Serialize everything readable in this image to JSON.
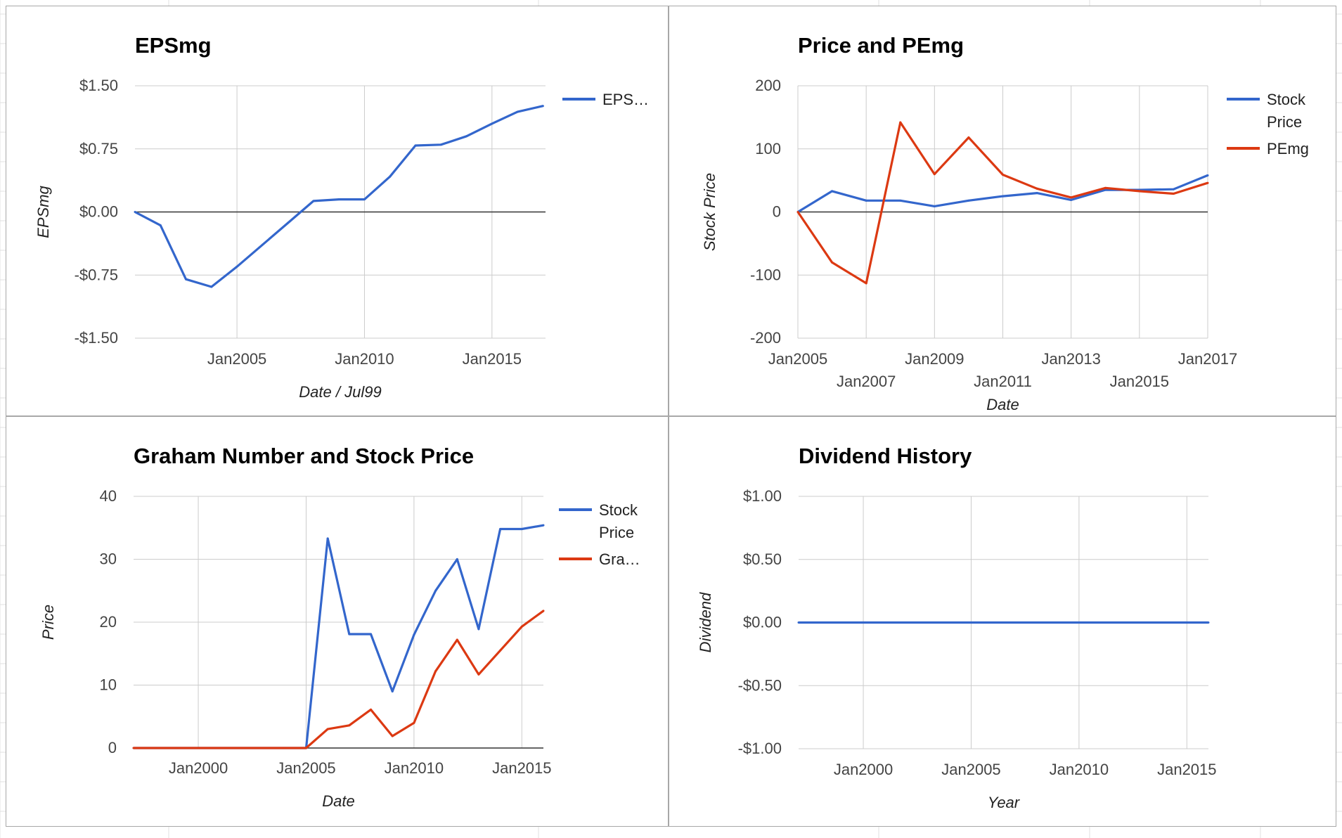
{
  "colors": {
    "blue": "#3366cc",
    "red": "#dc3912",
    "grid": "#cccccc",
    "baseline": "#333333",
    "sheet_grid": "#e0e0e0"
  },
  "chart_data": [
    {
      "id": "epsmg",
      "type": "line",
      "title": "EPSmg",
      "xlabel": "Date / Jul99",
      "ylabel": "EPSmg",
      "xlim": [
        2001.0,
        2017.1
      ],
      "ylim": [
        -1.5,
        1.5
      ],
      "y_ticks": [
        {
          "value": 1.5,
          "label": "$1.50"
        },
        {
          "value": 0.75,
          "label": "$0.75"
        },
        {
          "value": 0,
          "label": "$0.00"
        },
        {
          "value": -0.75,
          "label": "-$0.75"
        },
        {
          "value": -1.5,
          "label": "-$1.50"
        }
      ],
      "x_ticks": [
        {
          "value": 2005,
          "label": "Jan2005"
        },
        {
          "value": 2010,
          "label": "Jan2010"
        },
        {
          "value": 2015,
          "label": "Jan2015"
        }
      ],
      "grid": true,
      "legend": "right",
      "series": [
        {
          "name": "EPS…",
          "color": "#3366cc",
          "x": [
            2001.0,
            2002.0,
            2003.0,
            2004.0,
            2005.0,
            2006.0,
            2007.0,
            2008.0,
            2009.0,
            2010.0,
            2011.0,
            2012.0,
            2013.0,
            2014.0,
            2015.0,
            2016.0,
            2017.0
          ],
          "y": [
            0.0,
            -0.16,
            -0.8,
            -0.89,
            -0.65,
            -0.39,
            -0.13,
            0.13,
            0.15,
            0.15,
            0.42,
            0.79,
            0.8,
            0.9,
            1.05,
            1.19,
            1.26
          ]
        }
      ]
    },
    {
      "id": "price-pemg",
      "type": "line",
      "title": "Price and PEmg",
      "xlabel": "Date",
      "ylabel": "Stock Price",
      "xlim": [
        2005.0,
        2017.0
      ],
      "ylim": [
        -200,
        200
      ],
      "y_ticks": [
        {
          "value": 200,
          "label": "200"
        },
        {
          "value": 100,
          "label": "100"
        },
        {
          "value": 0,
          "label": "0"
        },
        {
          "value": -100,
          "label": "-100"
        },
        {
          "value": -200,
          "label": "-200"
        }
      ],
      "x_ticks": [
        {
          "value": 2005,
          "label": "Jan2005",
          "row": 0
        },
        {
          "value": 2007,
          "label": "Jan2007",
          "row": 1
        },
        {
          "value": 2009,
          "label": "Jan2009",
          "row": 0
        },
        {
          "value": 2011,
          "label": "Jan2011",
          "row": 1
        },
        {
          "value": 2013,
          "label": "Jan2013",
          "row": 0
        },
        {
          "value": 2015,
          "label": "Jan2015",
          "row": 1
        },
        {
          "value": 2017,
          "label": "Jan2017",
          "row": 0
        }
      ],
      "grid": true,
      "legend": "right",
      "series": [
        {
          "name": "Stock Price",
          "color": "#3366cc",
          "x": [
            2005.0,
            2006.0,
            2007.0,
            2008.0,
            2009.0,
            2010.0,
            2011.0,
            2012.0,
            2013.0,
            2014.0,
            2015.0,
            2016.0,
            2017.0
          ],
          "y": [
            0,
            33,
            18,
            18,
            9,
            18,
            25,
            30,
            19,
            35,
            35,
            36,
            58
          ]
        },
        {
          "name": "PEmg",
          "color": "#dc3912",
          "x": [
            2005.0,
            2006.0,
            2007.0,
            2008.0,
            2009.0,
            2010.0,
            2011.0,
            2012.0,
            2013.0,
            2014.0,
            2015.0,
            2016.0,
            2017.0
          ],
          "y": [
            0,
            -80,
            -113,
            142,
            60,
            118,
            59,
            37,
            23,
            38,
            33,
            29,
            46
          ]
        }
      ]
    },
    {
      "id": "graham",
      "type": "line",
      "title": "Graham Number and Stock Price",
      "xlabel": "Date",
      "ylabel": "Price",
      "xlim": [
        1997.0,
        2016.0
      ],
      "ylim": [
        0,
        40
      ],
      "y_ticks": [
        {
          "value": 40,
          "label": "40"
        },
        {
          "value": 30,
          "label": "30"
        },
        {
          "value": 20,
          "label": "20"
        },
        {
          "value": 10,
          "label": "10"
        },
        {
          "value": 0,
          "label": "0"
        }
      ],
      "x_ticks": [
        {
          "value": 2000,
          "label": "Jan2000"
        },
        {
          "value": 2005,
          "label": "Jan2005"
        },
        {
          "value": 2010,
          "label": "Jan2010"
        },
        {
          "value": 2015,
          "label": "Jan2015"
        }
      ],
      "grid": true,
      "legend": "right",
      "series": [
        {
          "name": "Stock Price",
          "color": "#3366cc",
          "x": [
            1997.0,
            1998.0,
            1999.0,
            2000.0,
            2001.0,
            2002.0,
            2003.0,
            2004.0,
            2005.0,
            2006.0,
            2007.0,
            2008.0,
            2009.0,
            2010.0,
            2011.0,
            2012.0,
            2013.0,
            2014.0,
            2015.0,
            2016.0
          ],
          "y": [
            0,
            0,
            0,
            0,
            0,
            0,
            0,
            0,
            0,
            33.3,
            18.1,
            18.1,
            9,
            18,
            25,
            30,
            18.9,
            34.8,
            34.8,
            35.4
          ]
        },
        {
          "name": "Gra…",
          "color": "#dc3912",
          "x": [
            1997.0,
            1998.0,
            1999.0,
            2000.0,
            2001.0,
            2002.0,
            2003.0,
            2004.0,
            2005.0,
            2006.0,
            2007.0,
            2008.0,
            2009.0,
            2010.0,
            2011.0,
            2012.0,
            2013.0,
            2014.0,
            2015.0,
            2016.0
          ],
          "y": [
            0,
            0,
            0,
            0,
            0,
            0,
            0,
            0,
            0,
            3,
            3.6,
            6.1,
            1.9,
            4,
            12.2,
            17.2,
            11.7,
            15.5,
            19.3,
            21.8
          ]
        }
      ]
    },
    {
      "id": "dividend",
      "type": "line",
      "title": "Dividend History",
      "xlabel": "Year",
      "ylabel": "Dividend",
      "xlim": [
        1997.0,
        2016.0
      ],
      "ylim": [
        -1.0,
        1.0
      ],
      "y_ticks": [
        {
          "value": 1.0,
          "label": "$1.00"
        },
        {
          "value": 0.5,
          "label": "$0.50"
        },
        {
          "value": 0,
          "label": "$0.00"
        },
        {
          "value": -0.5,
          "label": "-$0.50"
        },
        {
          "value": -1.0,
          "label": "-$1.00"
        }
      ],
      "x_ticks": [
        {
          "value": 2000,
          "label": "Jan2000"
        },
        {
          "value": 2005,
          "label": "Jan2005"
        },
        {
          "value": 2010,
          "label": "Jan2010"
        },
        {
          "value": 2015,
          "label": "Jan2015"
        }
      ],
      "grid": true,
      "legend": "none",
      "series": [
        {
          "color": "#3366cc",
          "x": [
            1997.0,
            2016.0
          ],
          "y": [
            0,
            0
          ]
        }
      ]
    }
  ]
}
